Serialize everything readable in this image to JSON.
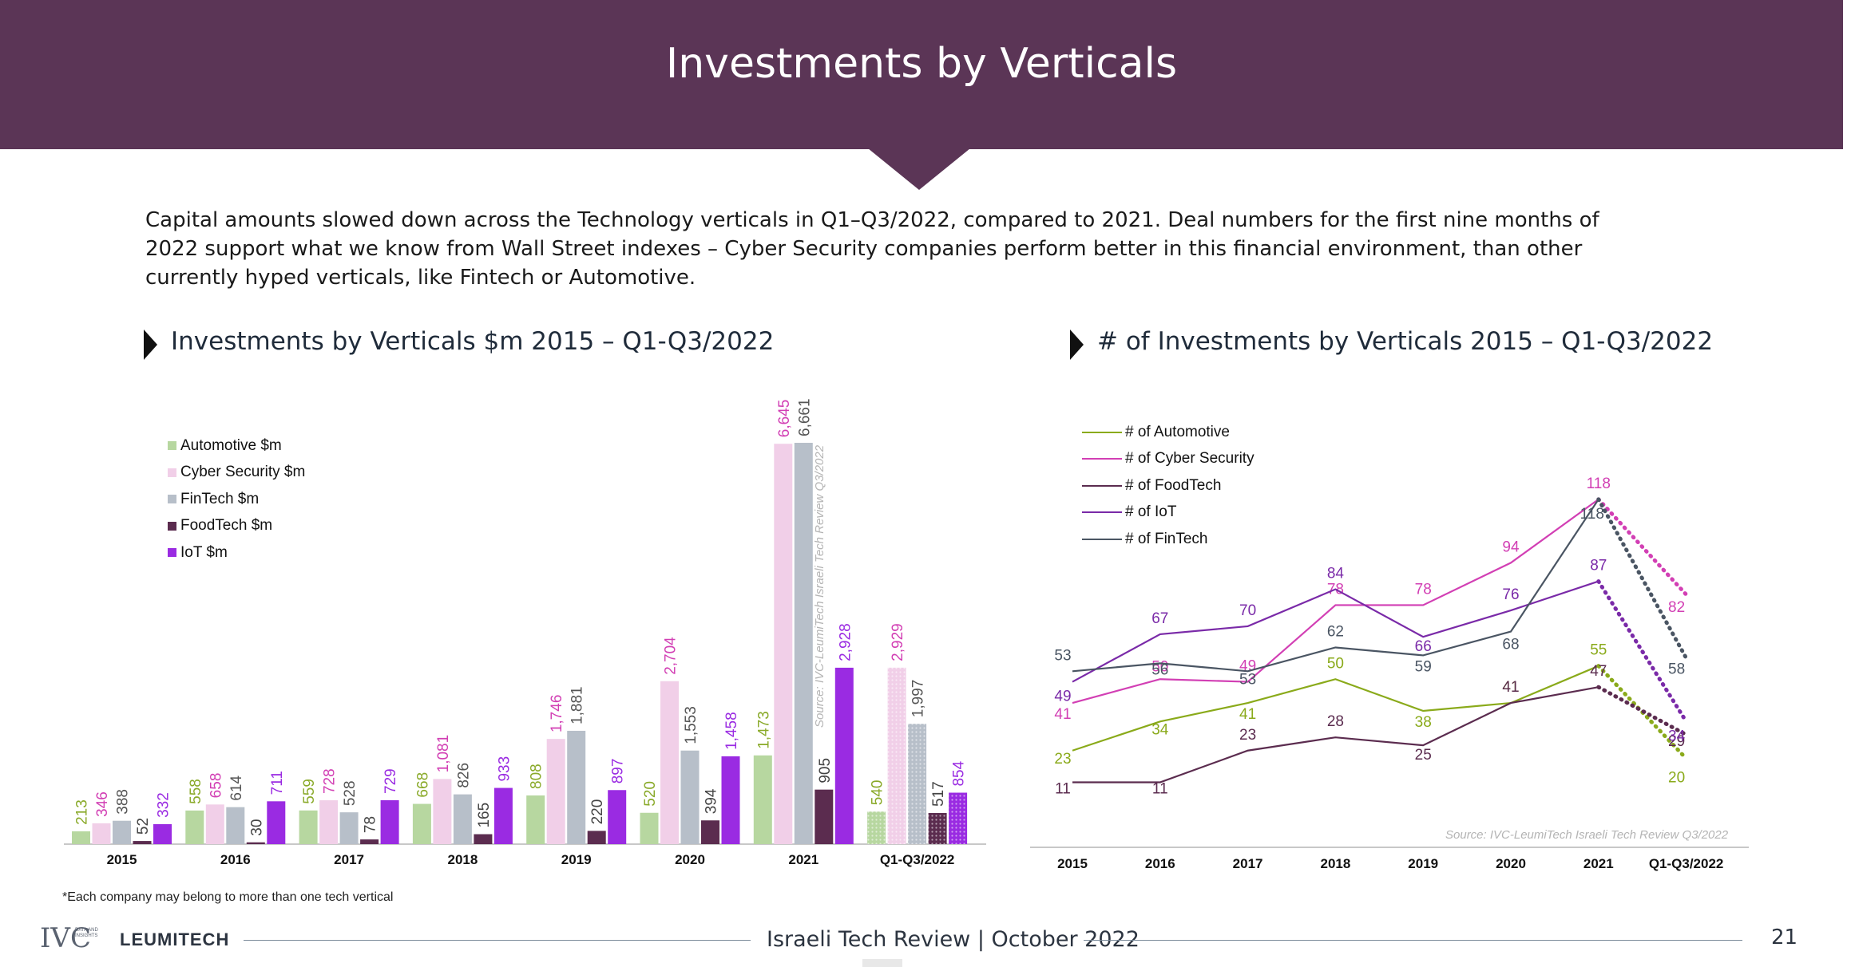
{
  "header": {
    "title": "Investments by Verticals"
  },
  "intro": "Capital amounts slowed down across the Technology verticals in Q1–Q3/2022, compared to 2021. Deal numbers for the first nine months of 2022 support what we know from Wall Street indexes – Cyber Security companies perform better in this financial environment, than other currently hyped verticals, like Fintech or Automotive.",
  "left_heading": "Investments by Verticals $m 2015 – Q1-Q3/2022",
  "right_heading": "# of Investments by Verticals 2015 – Q1-Q3/2022",
  "footnote": "*Each company may belong to more than one tech vertical",
  "footer": {
    "text": "Israeli Tech Review  |  October 2022",
    "page": "21",
    "logo_ivc": "IVC",
    "logo_ivc_small": "DATA AND INSIGHTS",
    "logo_leumi": "LEUMITECH"
  },
  "chart_data": [
    {
      "type": "bar",
      "title": "Investments by Verticals $m 2015 – Q1-Q3/2022",
      "source": "Source: IVC-LeumiTech Israeli Tech Review Q3/2022",
      "categories": [
        "2015",
        "2016",
        "2017",
        "2018",
        "2019",
        "2020",
        "2021",
        "Q1-Q3/2022"
      ],
      "series": [
        {
          "name": "Automotive $m",
          "color": "#b7d7a0",
          "label_color": "#8aaa2a",
          "values": [
            213,
            558,
            559,
            668,
            808,
            520,
            1473,
            540
          ],
          "labels": [
            "213",
            "558",
            "559",
            "668",
            "808",
            "520",
            "1,473",
            "540"
          ]
        },
        {
          "name": "Cyber Security $m",
          "color": "#f1cfe8",
          "label_color": "#d23fb4",
          "values": [
            346,
            658,
            728,
            1081,
            1746,
            2704,
            6645,
            2929
          ],
          "labels": [
            "346",
            "658",
            "728",
            "1,081",
            "1,746",
            "2,704",
            "6,645",
            "2,929"
          ]
        },
        {
          "name": "FinTech $m",
          "color": "#b7bfc9",
          "label_color": "#555555",
          "values": [
            388,
            614,
            528,
            826,
            1881,
            1553,
            6661,
            1997
          ],
          "labels": [
            "388",
            "614",
            "528",
            "826",
            "1,881",
            "1,553",
            "6,661",
            "1,997"
          ]
        },
        {
          "name": "FoodTech $m",
          "color": "#5b2c4f",
          "label_color": "#444444",
          "values": [
            52,
            30,
            78,
            165,
            220,
            394,
            905,
            517
          ],
          "labels": [
            "52",
            "30",
            "78",
            "165",
            "220",
            "394",
            "905",
            "517"
          ]
        },
        {
          "name": "IoT $m",
          "color": "#9a2be2",
          "label_color": "#9a2be2",
          "values": [
            332,
            711,
            729,
            933,
            897,
            1458,
            2928,
            854
          ],
          "labels": [
            "332",
            "711",
            "729",
            "933",
            "897",
            "1,458",
            "2,928",
            "854"
          ]
        }
      ],
      "legend": "top-left",
      "grid": false
    },
    {
      "type": "line",
      "title": "# of Investments by Verticals 2015 – Q1-Q3/2022",
      "source": "Source: IVC-LeumiTech Israeli Tech Review Q3/2022",
      "categories": [
        "2015",
        "2016",
        "2017",
        "2018",
        "2019",
        "2020",
        "2021",
        "Q1-Q3/2022"
      ],
      "series": [
        {
          "name": "# of Automotive",
          "color": "#8aaa1a",
          "values": [
            23,
            34,
            41,
            50,
            38,
            41,
            55,
            20
          ]
        },
        {
          "name": "# of Cyber Security",
          "color": "#d23fb4",
          "values": [
            41,
            50,
            49,
            78,
            78,
            94,
            118,
            82
          ]
        },
        {
          "name": "# of FoodTech",
          "color": "#5b2c4f",
          "values": [
            11,
            11,
            23,
            28,
            25,
            41,
            47,
            29
          ]
        },
        {
          "name": "# of IoT",
          "color": "#7a2aa8",
          "values": [
            49,
            67,
            70,
            84,
            66,
            76,
            87,
            34
          ]
        },
        {
          "name": "# of FinTech",
          "color": "#4a5563",
          "values": [
            53,
            56,
            53,
            62,
            59,
            68,
            118,
            58
          ]
        }
      ],
      "last_segment_dotted": true,
      "legend": "top-left",
      "grid": false
    }
  ]
}
